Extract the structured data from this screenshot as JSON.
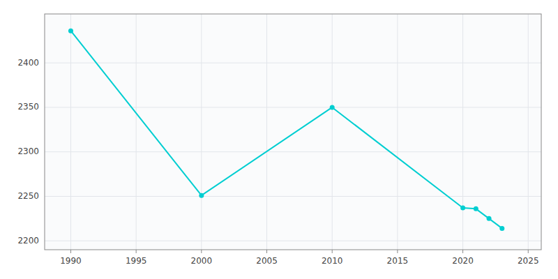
{
  "chart_data": {
    "type": "line",
    "x": [
      1990,
      2000,
      2010,
      2020,
      2021,
      2022,
      2023
    ],
    "values": [
      2436,
      2251,
      2350,
      2237,
      2236,
      2225,
      2214
    ],
    "color": "#00CED1",
    "marker": "circle",
    "xlim": [
      1988,
      2026
    ],
    "ylim": [
      2190,
      2455
    ],
    "xticks": [
      1990,
      1995,
      2000,
      2005,
      2010,
      2015,
      2020,
      2025
    ],
    "yticks": [
      2200,
      2250,
      2300,
      2350,
      2400
    ],
    "grid": true
  }
}
